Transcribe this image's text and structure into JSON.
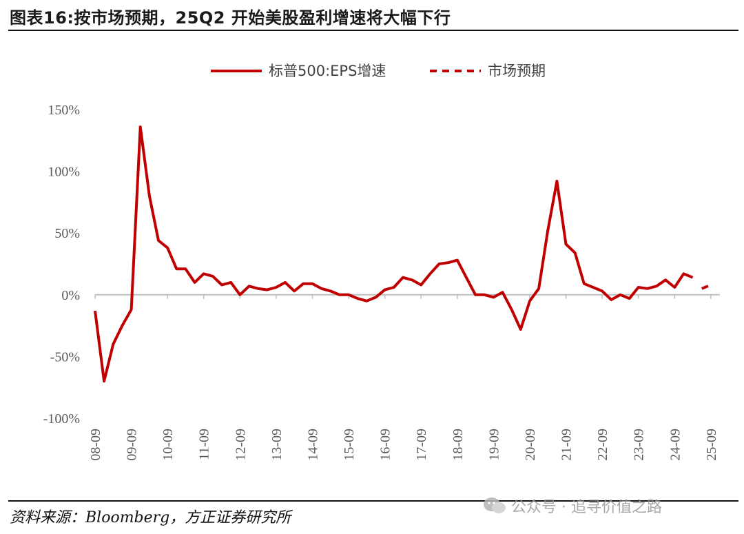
{
  "figure": {
    "title": "图表16:按市场预期，25Q2 开始美股盈利增速将大幅下行",
    "source": "资料来源：Bloomberg，方正证券研究所",
    "watermark": "公众号 · 追寻价值之路"
  },
  "chart_data": {
    "type": "line",
    "ylim": [
      -100,
      150
    ],
    "yticks": [
      -100,
      -50,
      0,
      50,
      100,
      150
    ],
    "ytick_labels": [
      "-100%",
      "-50%",
      "0%",
      "50%",
      "100%",
      "150%"
    ],
    "xtick_labels": [
      "08-09",
      "09-09",
      "10-09",
      "11-09",
      "12-09",
      "13-09",
      "14-09",
      "15-09",
      "16-09",
      "17-09",
      "18-09",
      "19-09",
      "20-09",
      "21-09",
      "22-09",
      "23-09",
      "24-09",
      "25-09"
    ],
    "xtick_index": [
      0,
      4,
      8,
      12,
      16,
      20,
      24,
      28,
      32,
      36,
      40,
      44,
      48,
      52,
      56,
      60,
      64,
      68
    ],
    "grid": false,
    "legend_position": "top-center",
    "series": [
      {
        "name": "标普500:EPS增速",
        "style": "solid",
        "color": "#C00000",
        "x": [
          0,
          1,
          2,
          3,
          4,
          5,
          6,
          7,
          8,
          9,
          10,
          11,
          12,
          13,
          14,
          15,
          16,
          17,
          18,
          19,
          20,
          21,
          22,
          23,
          24,
          25,
          26,
          27,
          28,
          29,
          30,
          31,
          32,
          33,
          34,
          35,
          36,
          37,
          38,
          39,
          40,
          41,
          42,
          43,
          44,
          45,
          46,
          47,
          48,
          49,
          50,
          51,
          52,
          53,
          54,
          55,
          56,
          57,
          58,
          59,
          60,
          61,
          62,
          63,
          64,
          65,
          66
        ],
        "values": [
          -13,
          -70,
          -40,
          -25,
          -12,
          136,
          80,
          44,
          38,
          21,
          21,
          10,
          17,
          15,
          8,
          10,
          0,
          7,
          5,
          4,
          6,
          10,
          3,
          9,
          9,
          5,
          3,
          0,
          0,
          -3,
          -5,
          -2,
          4,
          6,
          14,
          12,
          8,
          17,
          25,
          26,
          28,
          14,
          0,
          0,
          -2,
          2,
          -12,
          -28,
          -5,
          5,
          52,
          92,
          41,
          34,
          9,
          6,
          3,
          -4,
          0,
          -3,
          6,
          5,
          7,
          12,
          6,
          17,
          14
        ]
      },
      {
        "name": "市场预期",
        "style": "dashed",
        "color": "#C00000",
        "x": [
          67,
          68
        ],
        "values": [
          5,
          8
        ]
      }
    ]
  }
}
